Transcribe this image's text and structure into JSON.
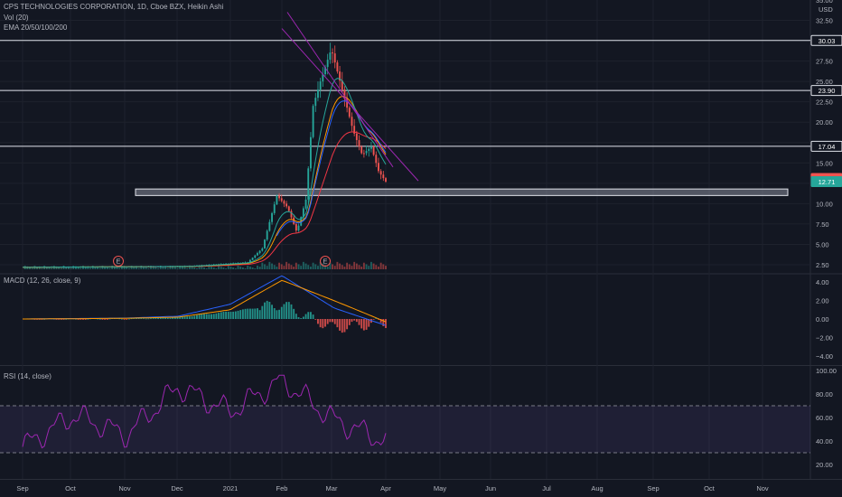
{
  "header": {
    "title": "CPS TECHNOLOGIES CORPORATION, 1D, Cboe BZX, Heikin Ashi",
    "vol": "Vol (20)",
    "ema": "EMA 20/50/100/200"
  },
  "price_axis": {
    "currency": "USD",
    "ticks": [
      "35.00",
      "32.50",
      "30.00",
      "27.50",
      "25.00",
      "22.50",
      "20.00",
      "17.50",
      "15.00",
      "12.50",
      "10.00",
      "7.50",
      "5.00",
      "2.50"
    ]
  },
  "macd_panel": {
    "label": "MACD (12, 26, close, 9)",
    "ticks": [
      "4.00",
      "2.00",
      "0.00",
      "−2.00",
      "−4.00"
    ]
  },
  "rsi_panel": {
    "label": "RSI (14, close)",
    "ticks": [
      "100.00",
      "80.00",
      "60.00",
      "40.00",
      "20.00"
    ]
  },
  "time_axis": {
    "ticks": [
      "Sep",
      "Oct",
      "Nov",
      "Dec",
      "2021",
      "Feb",
      "Mar",
      "Apr",
      "May",
      "Jun",
      "Jul",
      "Aug",
      "Sep",
      "Oct",
      "Nov"
    ]
  },
  "earnings_marker": "E",
  "chart_data": [
    {
      "type": "candlestick",
      "title": "CPS TECHNOLOGIES CORPORATION, 1D, Cboe BZX, Heikin Ashi",
      "xlabel": "",
      "ylabel": "USD",
      "ylim": [
        1.5,
        35
      ],
      "horizontal_levels": [
        30.03,
        23.9,
        17.04
      ],
      "price_labels": [
        "30.03",
        "23.90",
        "17.04",
        "13.09",
        "12.71"
      ],
      "support_zone": [
        11.0,
        11.8
      ],
      "trendline": {
        "from": [
          "Feb",
          31.5
        ],
        "to": [
          "Apr",
          12.8
        ]
      },
      "x": [
        "Sep",
        "Oct",
        "Nov",
        "Dec",
        "2021",
        "Feb",
        "Mar",
        "Apr"
      ],
      "series": [
        {
          "name": "close",
          "values": [
            2.2,
            2.3,
            2.4,
            2.9,
            10.5,
            28.0,
            17.0,
            12.7
          ]
        },
        {
          "name": "EMA",
          "values": [
            2.2,
            2.3,
            2.4,
            2.7,
            4.5,
            12.0,
            15.5,
            13.2
          ]
        }
      ]
    },
    {
      "type": "bar",
      "title": "MACD (12, 26, close, 9)",
      "ylim": [
        -5,
        5
      ],
      "x": [
        "Sep",
        "Oct",
        "Nov",
        "Dec",
        "2021",
        "Feb",
        "Mar",
        "Apr"
      ],
      "values": [
        0.0,
        0.0,
        0.05,
        0.2,
        0.8,
        1.6,
        -1.0,
        -0.4
      ],
      "series": [
        {
          "name": "MACD",
          "values": [
            0.0,
            0.05,
            0.1,
            0.3,
            1.6,
            4.7,
            1.2,
            -0.7
          ]
        },
        {
          "name": "signal",
          "values": [
            0.0,
            0.03,
            0.08,
            0.2,
            1.0,
            4.2,
            2.0,
            -0.3
          ]
        }
      ]
    },
    {
      "type": "line",
      "title": "RSI (14, close)",
      "ylim": [
        15,
        100
      ],
      "bands": [
        30,
        70
      ],
      "x": [
        "Sep",
        "Oct",
        "Nov",
        "Dec",
        "2021",
        "Feb",
        "Mar",
        "Apr"
      ],
      "values": [
        35,
        62,
        45,
        86,
        65,
        92,
        58,
        40
      ]
    }
  ]
}
